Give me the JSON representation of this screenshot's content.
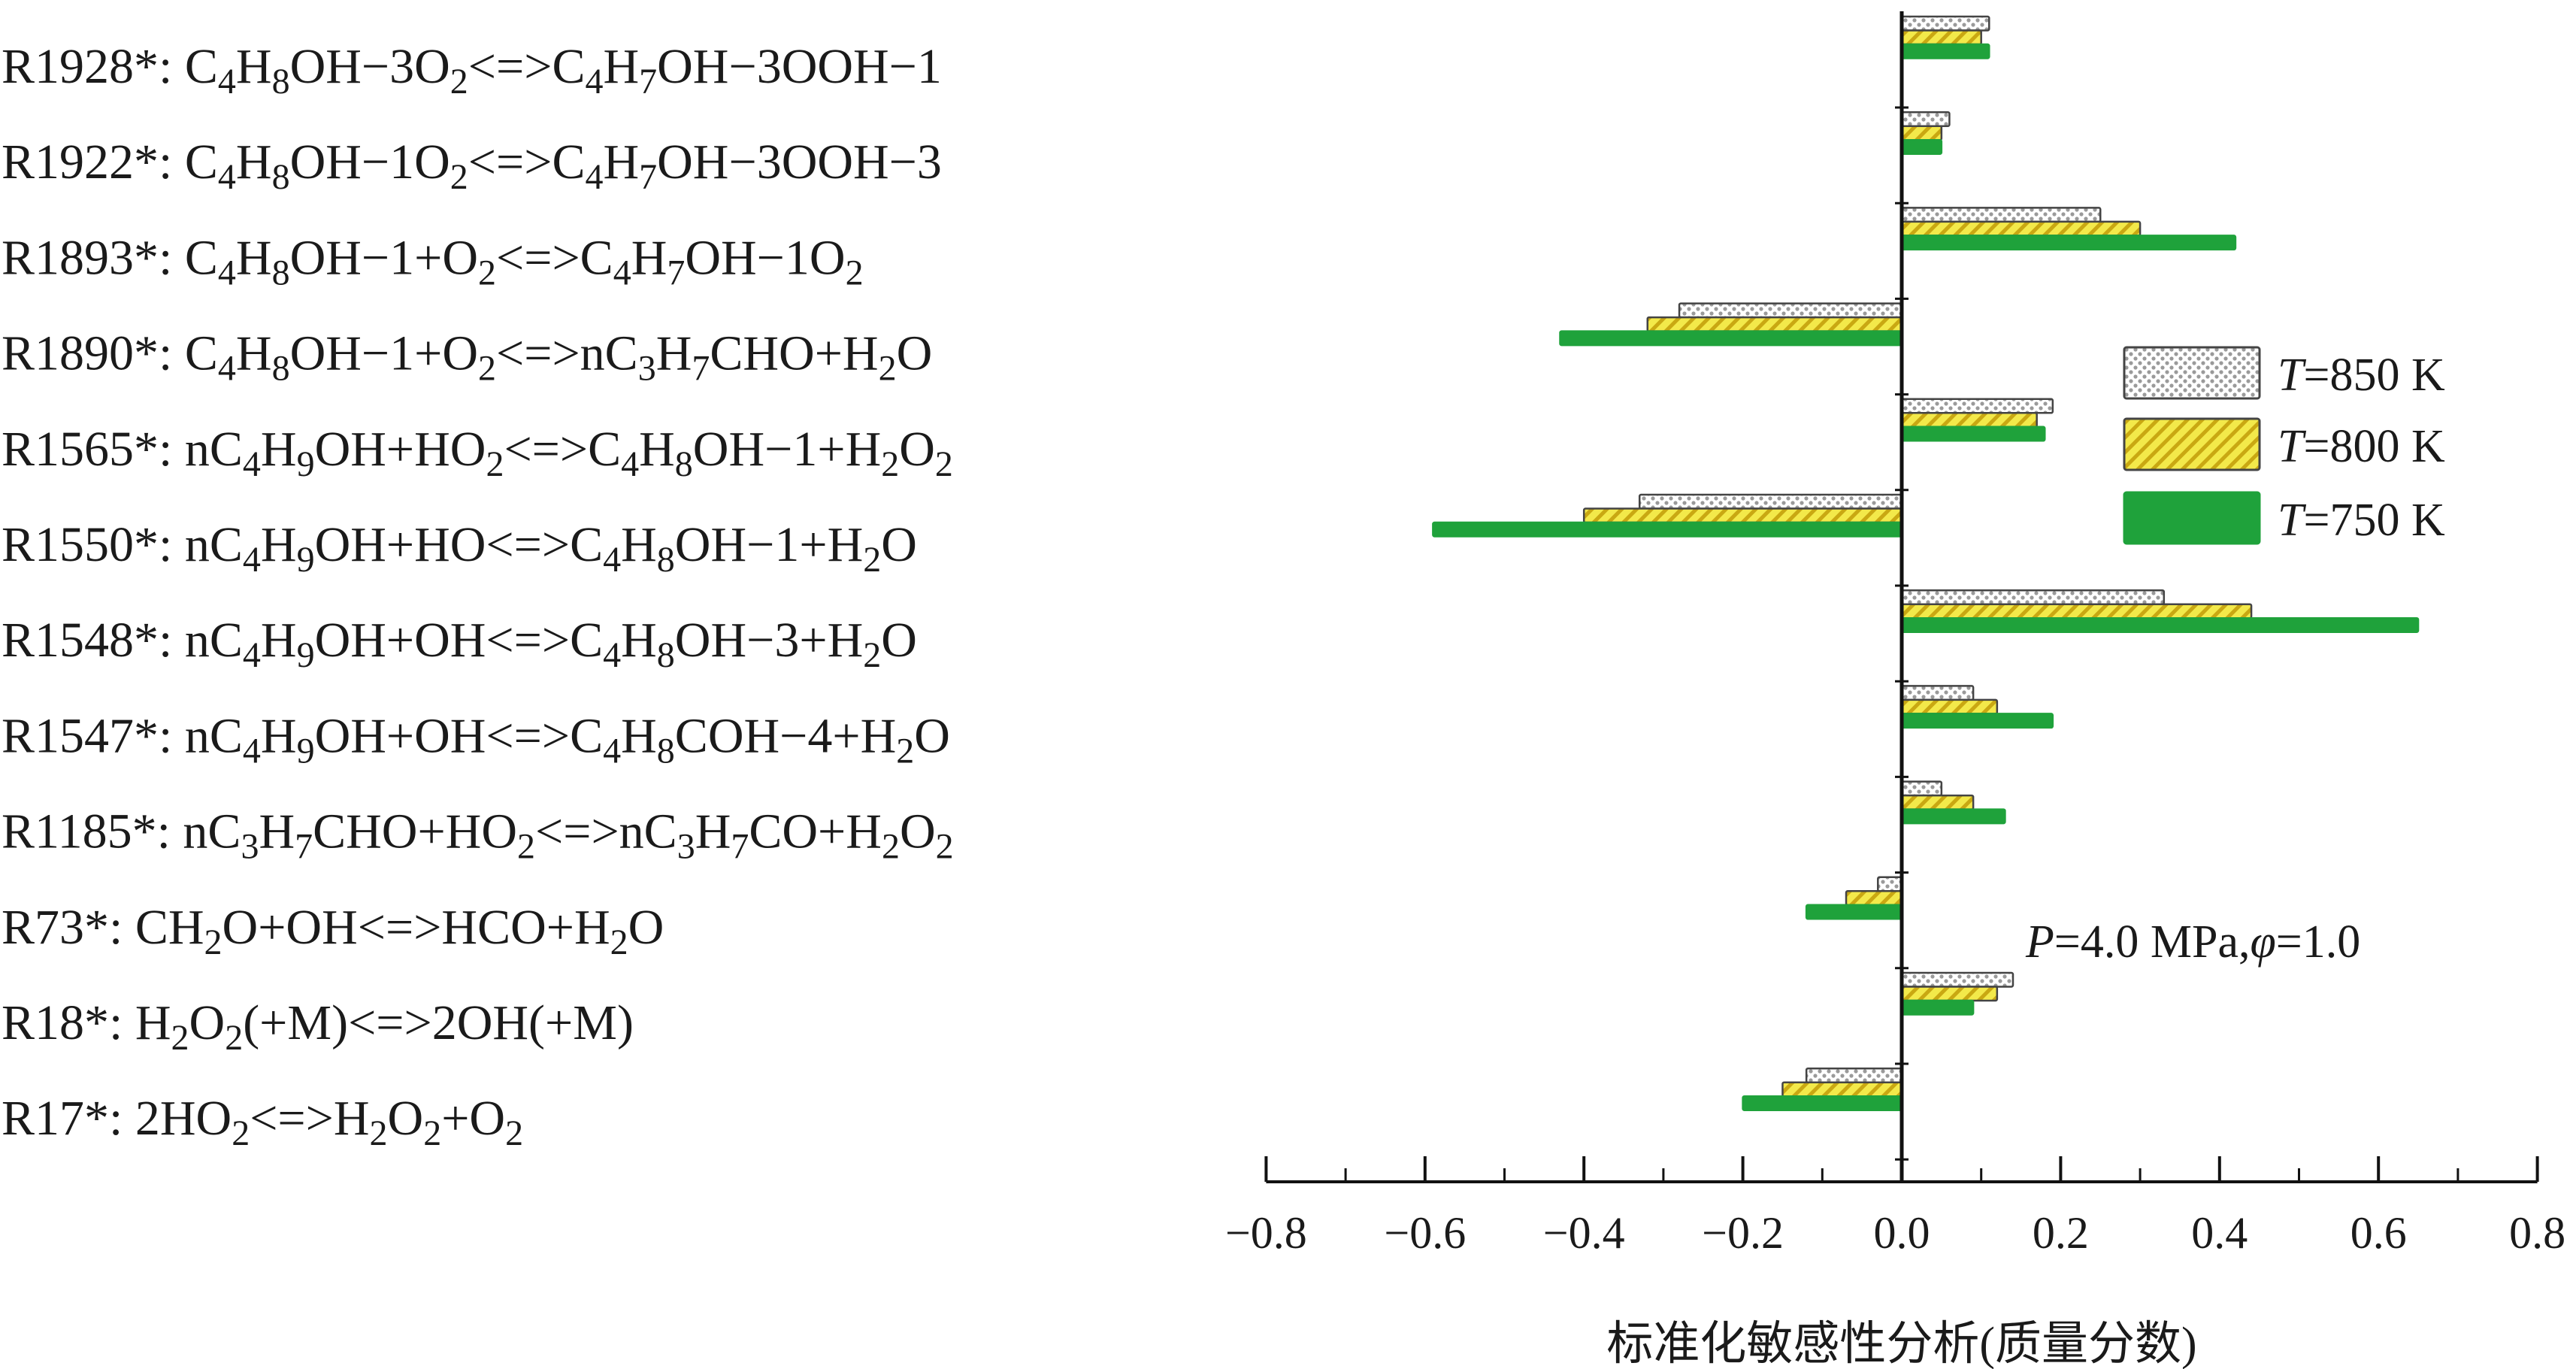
{
  "chart_data": {
    "type": "bar",
    "orientation": "horizontal",
    "categories": [
      "R1928*: C<sub>4</sub>H<sub>8</sub>OH−3O<sub>2</sub>&lt;=&gt;C<sub>4</sub>H<sub>7</sub>OH−3OOH−1",
      "R1922*: C<sub>4</sub>H<sub>8</sub>OH−1O<sub>2</sub>&lt;=&gt;C<sub>4</sub>H<sub>7</sub>OH−3OOH−3",
      "R1893*: C<sub>4</sub>H<sub>8</sub>OH−1+O<sub>2</sub>&lt;=&gt;C<sub>4</sub>H<sub>7</sub>OH−1O<sub>2</sub>",
      "R1890*: C<sub>4</sub>H<sub>8</sub>OH−1+O<sub>2</sub>&lt;=&gt;nC<sub>3</sub>H<sub>7</sub>CHO+H<sub>2</sub>O",
      "R1565*: nC<sub>4</sub>H<sub>9</sub>OH+HO<sub>2</sub>&lt;=&gt;C<sub>4</sub>H<sub>8</sub>OH−1+H<sub>2</sub>O<sub>2</sub>",
      "R1550*: nC<sub>4</sub>H<sub>9</sub>OH+HO&lt;=&gt;C<sub>4</sub>H<sub>8</sub>OH−1+H<sub>2</sub>O",
      "R1548*: nC<sub>4</sub>H<sub>9</sub>OH+OH&lt;=&gt;C<sub>4</sub>H<sub>8</sub>OH−3+H<sub>2</sub>O",
      "R1547*: nC<sub>4</sub>H<sub>9</sub>OH+OH&lt;=&gt;C<sub>4</sub>H<sub>8</sub>COH−4+H<sub>2</sub>O",
      "R1185*: nC<sub>3</sub>H<sub>7</sub>CHO+HO<sub>2</sub>&lt;=&gt;nC<sub>3</sub>H<sub>7</sub>CO+H<sub>2</sub>O<sub>2</sub>",
      "R73*: CH<sub>2</sub>O+OH&lt;=&gt;HCO+H<sub>2</sub>O",
      "R18*: H<sub>2</sub>O<sub>2</sub>(+M)&lt;=&gt;2OH(+M)",
      "R17*: 2HO<sub>2</sub>&lt;=&gt;H<sub>2</sub>O<sub>2</sub>+O<sub>2</sub>"
    ],
    "series": [
      {
        "name": "<i>T</i>=850 K",
        "pattern": "dots",
        "fill": "#dcdcdc",
        "stroke": "#444444",
        "values": [
          0.11,
          0.06,
          0.25,
          -0.28,
          0.19,
          -0.33,
          0.33,
          0.09,
          0.05,
          -0.03,
          0.14,
          -0.12
        ]
      },
      {
        "name": "<i>T</i>=800 K",
        "pattern": "hatch",
        "fill": "#f0e630",
        "stroke": "#444444",
        "values": [
          0.1,
          0.05,
          0.3,
          -0.32,
          0.17,
          -0.4,
          0.44,
          0.12,
          0.09,
          -0.07,
          0.12,
          -0.15
        ]
      },
      {
        "name": "<i>T</i>=750 K",
        "pattern": "solid",
        "fill": "#1fa23b",
        "stroke": "#1fa23b",
        "values": [
          0.11,
          0.05,
          0.42,
          -0.43,
          0.18,
          -0.59,
          0.65,
          0.19,
          0.13,
          -0.12,
          0.09,
          -0.2
        ]
      }
    ],
    "xlim": [
      -0.8,
      0.8
    ],
    "xticks": [
      "−0.8",
      "−0.6",
      "−0.4",
      "−0.2",
      "0.0",
      "0.2",
      "0.4",
      "0.6",
      "0.8"
    ],
    "xlabel": "标准化敏感性分析(质量分数)",
    "annotation": "<i>P</i>=4.0 MPa,<i>φ</i>=1.0",
    "legend_position": "right",
    "grid": false
  }
}
